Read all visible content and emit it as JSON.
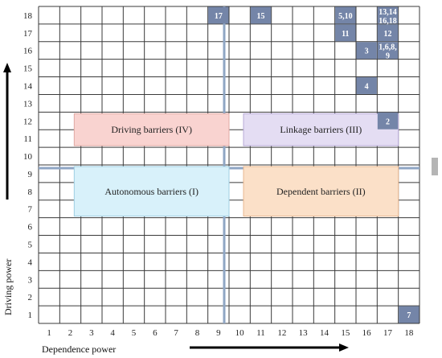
{
  "chart_data": {
    "type": "heatmap",
    "title": "",
    "xlabel": "Dependence power",
    "ylabel": "Driving power",
    "xlim": [
      1,
      18
    ],
    "ylim": [
      1,
      18
    ],
    "x_ticks": [
      1,
      2,
      3,
      4,
      5,
      6,
      7,
      8,
      9,
      10,
      11,
      12,
      13,
      14,
      15,
      16,
      17,
      18
    ],
    "y_ticks": [
      1,
      2,
      3,
      4,
      5,
      6,
      7,
      8,
      9,
      10,
      11,
      12,
      13,
      14,
      15,
      16,
      17,
      18
    ],
    "grid": true,
    "divider": {
      "x": 10,
      "y": 10,
      "color": "#8fa6c4"
    },
    "cell_color": "#7485a8",
    "quadrants": [
      {
        "label": "Driving barriers (IV)",
        "x": [
          2,
          9
        ],
        "y": [
          11,
          12
        ],
        "fill": "#f9d3d0",
        "stroke": "#e0a9a3"
      },
      {
        "label": "Linkage barriers (III)",
        "x": [
          10,
          17
        ],
        "y": [
          11,
          12
        ],
        "fill": "#e4ddf3",
        "stroke": "#b8aad7"
      },
      {
        "label": "Autonomous barriers (I)",
        "x": [
          2,
          9
        ],
        "y": [
          7,
          9
        ],
        "fill": "#d8f1fa",
        "stroke": "#9fcfe3"
      },
      {
        "label": "Dependent barriers (II)",
        "x": [
          10,
          17
        ],
        "y": [
          7,
          9
        ],
        "fill": "#fbe0c8",
        "stroke": "#e8b890"
      }
    ],
    "points": [
      {
        "label": "17",
        "x": 9,
        "y": 18
      },
      {
        "label": "15",
        "x": 11,
        "y": 18
      },
      {
        "label": "5,10",
        "x": 15,
        "y": 18
      },
      {
        "label": "13,14 16,18",
        "x": 17,
        "y": 18
      },
      {
        "label": "11",
        "x": 15,
        "y": 17
      },
      {
        "label": "12",
        "x": 17,
        "y": 17
      },
      {
        "label": "3",
        "x": 16,
        "y": 16
      },
      {
        "label": "1,6,8, 9",
        "x": 17,
        "y": 16
      },
      {
        "label": "4",
        "x": 16,
        "y": 14
      },
      {
        "label": "2",
        "x": 17,
        "y": 12
      },
      {
        "label": "7",
        "x": 18,
        "y": 1
      }
    ]
  }
}
